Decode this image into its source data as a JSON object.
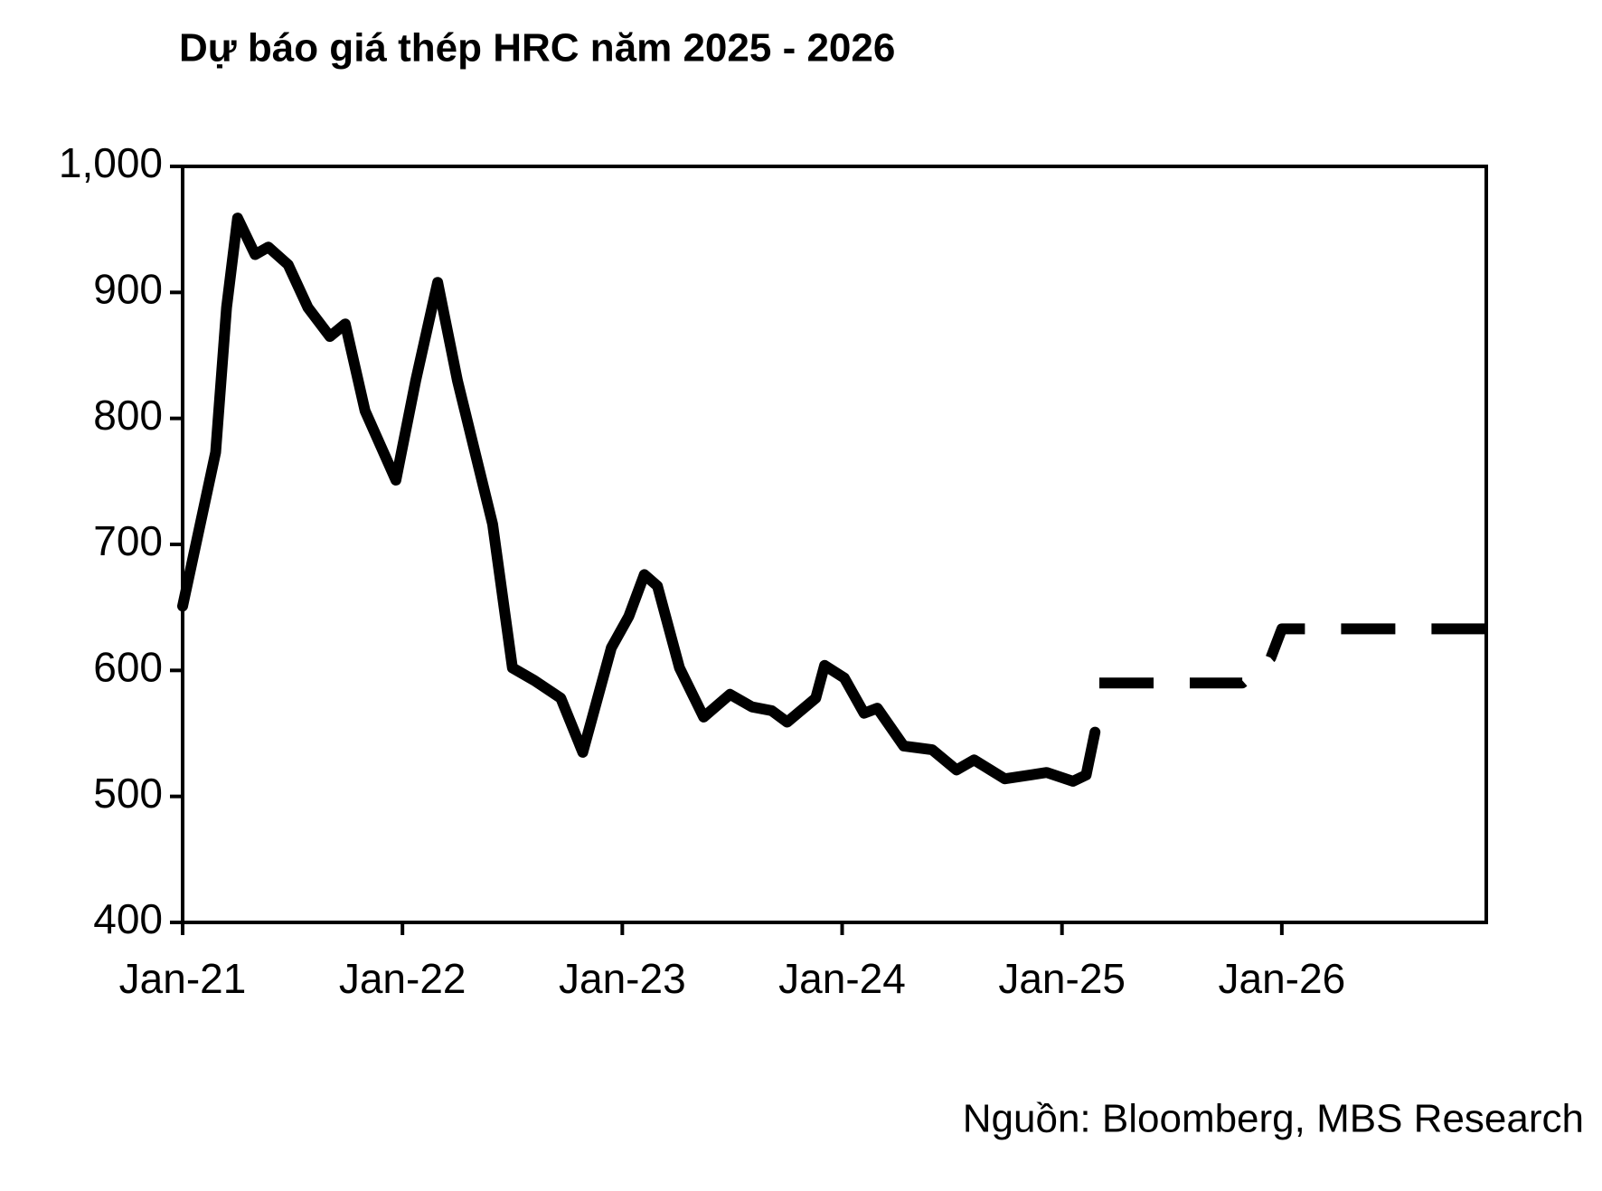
{
  "chart_data": {
    "type": "line",
    "title": "Dự báo giá thép HRC năm 2025 - 2026",
    "source": "Nguồn: Bloomberg, MBS Research",
    "series": [
      {
        "color": "#000000",
        "dashed": false,
        "x": [
          2021.0,
          2021.15,
          2021.2,
          2021.25,
          2021.33,
          2021.39,
          2021.48,
          2021.57,
          2021.67,
          2021.74,
          2021.83,
          2021.97,
          2022.06,
          2022.16,
          2022.25,
          2022.41,
          2022.5,
          2022.6,
          2022.72,
          2022.82,
          2022.95,
          2023.03,
          2023.1,
          2023.16,
          2023.26,
          2023.37,
          2023.49,
          2023.59,
          2023.68,
          2023.75,
          2023.88,
          2023.92,
          2024.01,
          2024.1,
          2024.16,
          2024.28,
          2024.41,
          2024.52,
          2024.6,
          2024.74,
          2024.93,
          2025.05,
          2025.11,
          2025.15
        ],
        "values": [
          651,
          773,
          888,
          959,
          930,
          936,
          922,
          888,
          865,
          875,
          806,
          751,
          830,
          908,
          830,
          716,
          602,
          592,
          578,
          535,
          618,
          643,
          676,
          667,
          602,
          563,
          581,
          571,
          568,
          559,
          578,
          604,
          594,
          566,
          570,
          540,
          537,
          521,
          529,
          514,
          519,
          512,
          517,
          551
        ]
      },
      {
        "color": "#000000",
        "dashed": true,
        "x": [
          2025.17,
          2025.82,
          2025.95,
          2026.0,
          2026.93
        ],
        "values": [
          590,
          590,
          610,
          633,
          633
        ]
      }
    ],
    "xlim": [
      2021.0,
      2026.93
    ],
    "xticks": [
      {
        "value": 2021,
        "label": "Jan-21"
      },
      {
        "value": 2022,
        "label": "Jan-22"
      },
      {
        "value": 2023,
        "label": "Jan-23"
      },
      {
        "value": 2024,
        "label": "Jan-24"
      },
      {
        "value": 2025,
        "label": "Jan-25"
      },
      {
        "value": 2026,
        "label": "Jan-26"
      }
    ],
    "ylim": [
      400,
      1000
    ],
    "yticks": [
      400,
      500,
      600,
      700,
      800,
      900,
      {
        "value": 1000,
        "label": "1,000"
      }
    ],
    "grid": false
  }
}
